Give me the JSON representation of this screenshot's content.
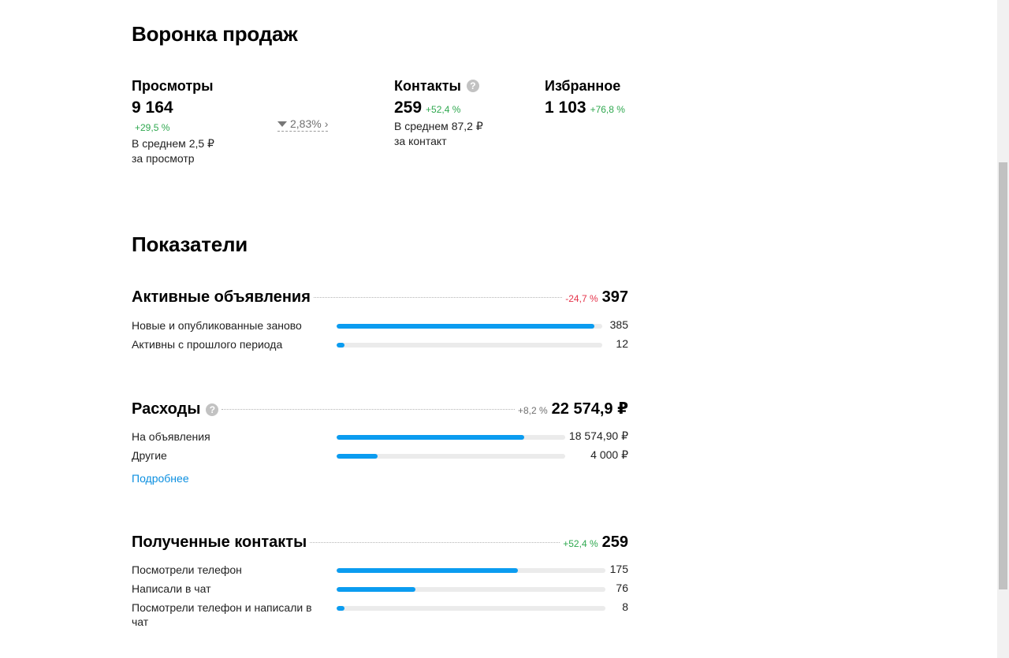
{
  "funnel": {
    "title": "Воронка продаж",
    "views": {
      "label": "Просмотры",
      "value": "9 164",
      "delta": "+29,5 %",
      "note_line1": "В среднем 2,5 ₽",
      "note_line2": "за просмотр"
    },
    "conversion": "2,83%",
    "contacts": {
      "label": "Контакты",
      "value": "259",
      "delta": "+52,4 %",
      "note_line1": "В среднем 87,2 ₽",
      "note_line2": "за контакт"
    },
    "favorites": {
      "label": "Избранное",
      "value": "1 103",
      "delta": "+76,8 %"
    }
  },
  "metrics": {
    "title": "Показатели",
    "active_ads": {
      "title": "Активные объявления",
      "delta": "-24,7 %",
      "total": "397",
      "rows": [
        {
          "label": "Новые и опубликованные заново",
          "value": "385",
          "fraction": 0.97
        },
        {
          "label": "Активны с прошлого периода",
          "value": "12",
          "fraction": 0.03
        }
      ]
    },
    "expenses": {
      "title": "Расходы",
      "delta": "+8,2 %",
      "total": "22 574,9 ₽",
      "rows": [
        {
          "label": "На объявления",
          "value": "18 574,90 ₽",
          "fraction": 0.82
        },
        {
          "label": "Другие",
          "value": "4 000 ₽",
          "fraction": 0.18
        }
      ],
      "more_link": "Подробнее"
    },
    "contacts": {
      "title": "Полученные контакты",
      "delta": "+52,4 %",
      "total": "259",
      "rows": [
        {
          "label": "Посмотрели телефон",
          "value": "175",
          "fraction": 0.675
        },
        {
          "label": "Написали в чат",
          "value": "76",
          "fraction": 0.293
        },
        {
          "label": "Посмотрели телефон и написали в чат",
          "value": "8",
          "fraction": 0.03
        }
      ]
    }
  },
  "colors": {
    "accent": "#0b9cf0",
    "positive": "#2fa84f",
    "negative": "#e5334a",
    "track": "#ebebeb"
  }
}
